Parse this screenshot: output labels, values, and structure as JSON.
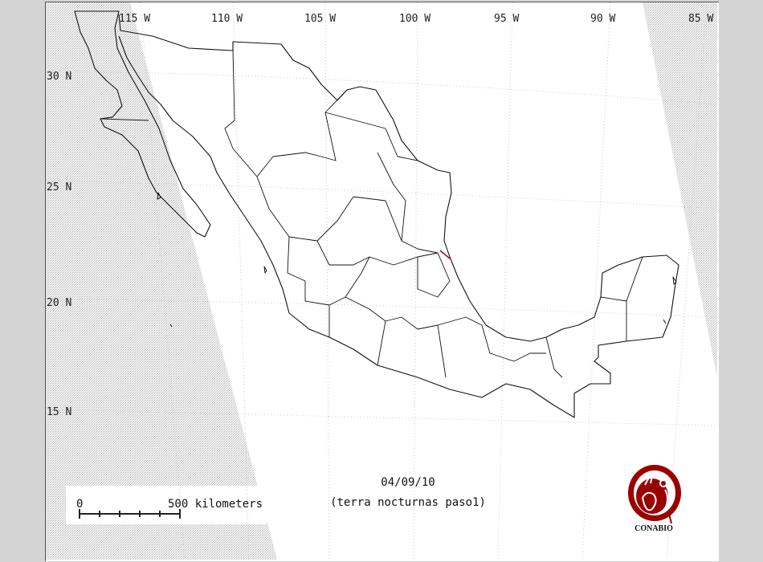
{
  "map": {
    "longitude_labels": [
      "115 W",
      "110 W",
      "105 W",
      "100 W",
      "95 W",
      "90 W",
      "85 W"
    ],
    "latitude_labels": [
      "30 N",
      "25 N",
      "20 N",
      "15 N"
    ],
    "date": "04/09/10",
    "subtitle": "(terra nocturnas paso1)",
    "scale_bar": {
      "start_label": "0",
      "end_label": "500 kilometers"
    },
    "logo_text": "CONABIO",
    "colors": {
      "outline": "#111111",
      "logo": "#9b0000",
      "no_data_stipple": "#c8c8c8",
      "frame_bg": "#d4d4d4"
    }
  }
}
